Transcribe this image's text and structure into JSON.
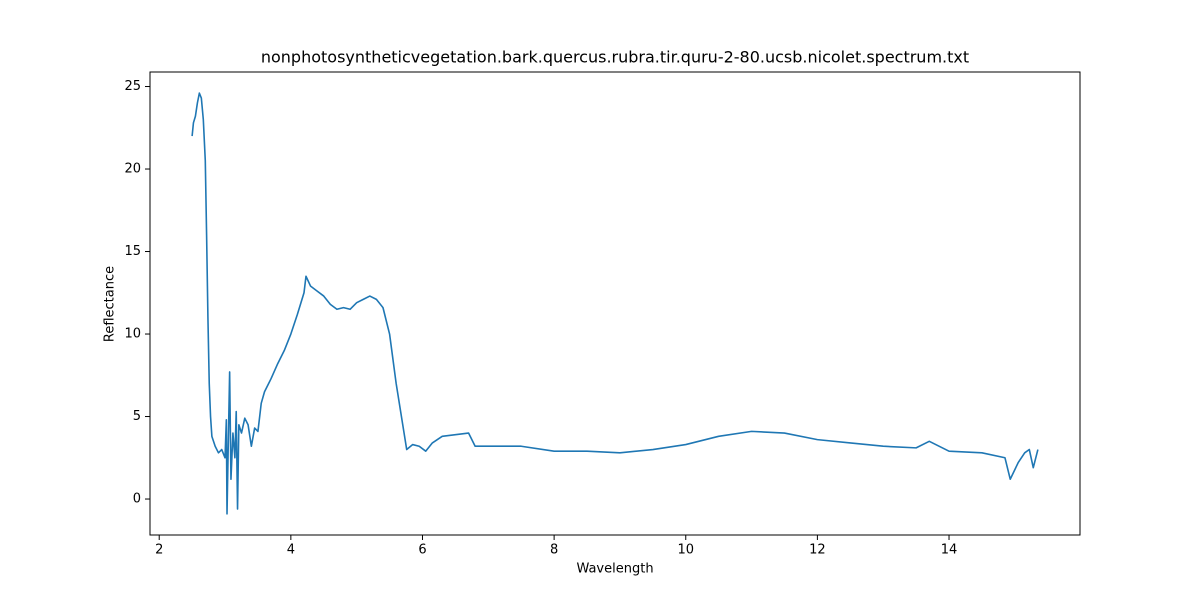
{
  "chart_data": {
    "type": "line",
    "title": "nonphotosyntheticvegetation.bark.quercus.rubra.tir.quru-2-80.ucsb.nicolet.spectrum.txt",
    "x_label": "Wavelength",
    "y_label": "Reflectance",
    "xlim": [
      1.86,
      15.99
    ],
    "ylim": [
      -2.18,
      25.88
    ],
    "xticks": [
      2,
      4,
      6,
      8,
      10,
      12,
      14
    ],
    "yticks": [
      0,
      5,
      10,
      15,
      20,
      25
    ],
    "x": [
      2.5,
      2.52,
      2.55,
      2.58,
      2.61,
      2.64,
      2.67,
      2.7,
      2.72,
      2.74,
      2.76,
      2.78,
      2.8,
      2.85,
      2.9,
      2.95,
      3.0,
      3.02,
      3.03,
      3.05,
      3.07,
      3.09,
      3.12,
      3.15,
      3.17,
      3.19,
      3.21,
      3.25,
      3.3,
      3.35,
      3.4,
      3.45,
      3.5,
      3.55,
      3.6,
      3.7,
      3.8,
      3.9,
      4.0,
      4.1,
      4.2,
      4.23,
      4.3,
      4.4,
      4.5,
      4.6,
      4.7,
      4.8,
      4.9,
      5.0,
      5.1,
      5.2,
      5.3,
      5.4,
      5.5,
      5.6,
      5.7,
      5.76,
      5.85,
      5.95,
      6.05,
      6.15,
      6.3,
      6.5,
      6.7,
      6.8,
      7.0,
      7.5,
      8.0,
      8.5,
      9.0,
      9.5,
      10.0,
      10.5,
      11.0,
      11.5,
      12.0,
      12.5,
      13.0,
      13.5,
      13.7,
      14.0,
      14.5,
      14.85,
      14.93,
      15.05,
      15.15,
      15.22,
      15.28,
      15.35
    ],
    "series": [
      {
        "name": "spectrum",
        "color": "#1f77b4",
        "values": [
          22.0,
          22.8,
          23.2,
          24.0,
          24.6,
          24.3,
          23.0,
          20.5,
          16,
          11,
          7,
          5,
          3.8,
          3.2,
          2.8,
          3.0,
          2.5,
          4.8,
          -0.9,
          3.5,
          7.7,
          1.2,
          4.0,
          2.5,
          5.3,
          -0.6,
          4.5,
          4.0,
          4.9,
          4.5,
          3.2,
          4.3,
          4.1,
          5.8,
          6.5,
          7.3,
          8.2,
          9.0,
          10.0,
          11.2,
          12.5,
          13.5,
          12.9,
          12.6,
          12.3,
          11.8,
          11.5,
          11.6,
          11.5,
          11.9,
          12.1,
          12.3,
          12.1,
          11.6,
          10.0,
          7.0,
          4.5,
          3.0,
          3.3,
          3.2,
          2.9,
          3.4,
          3.8,
          3.9,
          4.0,
          3.2,
          3.2,
          3.2,
          2.9,
          2.9,
          2.8,
          3.0,
          3.3,
          3.8,
          4.1,
          4.0,
          3.6,
          3.4,
          3.2,
          3.1,
          3.5,
          2.9,
          2.8,
          2.5,
          1.2,
          2.2,
          2.8,
          3.0,
          1.9,
          3.0
        ]
      }
    ]
  }
}
